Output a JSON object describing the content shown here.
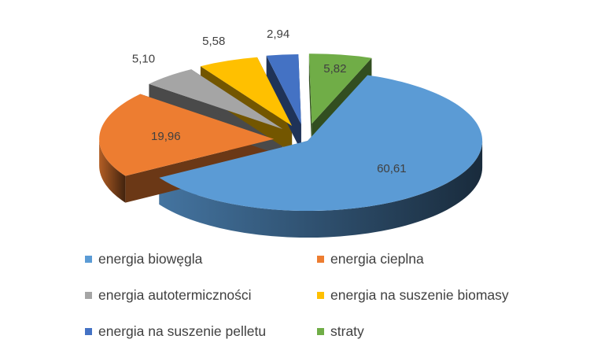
{
  "chart_data": {
    "type": "pie",
    "variant": "3d-exploded",
    "legend_position": "bottom",
    "slices": [
      {
        "label": "energia biowęgla",
        "value": 60.61,
        "display": "60,61",
        "color": "#5B9BD5"
      },
      {
        "label": "energia cieplna",
        "value": 19.96,
        "display": "19,96",
        "color": "#ED7D31"
      },
      {
        "label": "energia autotermiczności",
        "value": 5.1,
        "display": "5,10",
        "color": "#A5A5A5"
      },
      {
        "label": "energia na suszenie biomasy",
        "value": 5.58,
        "display": "5,58",
        "color": "#FFC000"
      },
      {
        "label": "energia na suszenie pelletu",
        "value": 2.94,
        "display": "2,94",
        "color": "#4472C4"
      },
      {
        "label": "straty",
        "value": 5.82,
        "display": "5,82",
        "color": "#70AD47"
      }
    ]
  }
}
